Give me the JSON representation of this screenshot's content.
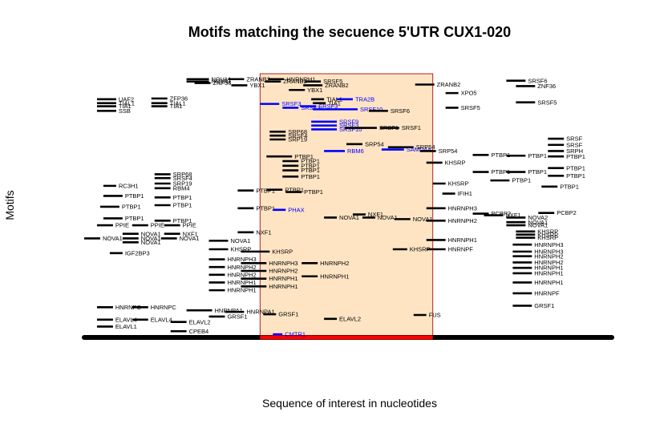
{
  "chart_data": {
    "type": "scatter",
    "title": "Motifs matching the secuence 5'UTR CUX1-020",
    "xlabel": "Sequence of interest in nucleotides",
    "ylabel": "Motifs",
    "colors": {
      "motif": "#000000",
      "highlight": "#0000ff",
      "region_fill": "#ffe4c4",
      "region_border": "#b22222",
      "region_base": "#ff0000",
      "sequence_bar": "#000000"
    },
    "sequence": {
      "start": 0,
      "end": 330
    },
    "region": {
      "start": 110,
      "end": 218
    },
    "xlim": [
      0,
      330
    ],
    "ylim": [
      0,
      34
    ],
    "motifs": [
      {
        "x1": 64,
        "x2": 78,
        "y": 33.3,
        "label": "NOVA1"
      },
      {
        "x1": 64,
        "x2": 78,
        "y": 33.0,
        "label": "NOVA1"
      },
      {
        "x1": 69,
        "x2": 79,
        "y": 32.8,
        "label": "ZNF36"
      },
      {
        "x1": 8,
        "x2": 20,
        "y": 30.7,
        "label": "UAF2"
      },
      {
        "x1": 42,
        "x2": 52,
        "y": 30.8,
        "label": "ZFP36"
      },
      {
        "x1": 8,
        "x2": 20,
        "y": 30.2,
        "label": "TIAL1"
      },
      {
        "x1": 42,
        "x2": 52,
        "y": 30.2,
        "label": "TIAL1"
      },
      {
        "x1": 8,
        "x2": 20,
        "y": 29.8,
        "label": "TIA1"
      },
      {
        "x1": 42,
        "x2": 52,
        "y": 29.8,
        "label": "TIA1"
      },
      {
        "x1": 8,
        "x2": 20,
        "y": 29.2,
        "label": "SSB"
      },
      {
        "x1": 44,
        "x2": 54,
        "y": 21.0,
        "label": "SRP68"
      },
      {
        "x1": 44,
        "x2": 54,
        "y": 20.5,
        "label": "SRSF4"
      },
      {
        "x1": 44,
        "x2": 54,
        "y": 19.8,
        "label": "SRP19"
      },
      {
        "x1": 12,
        "x2": 20,
        "y": 19.5,
        "label": "RC3H1"
      },
      {
        "x1": 44,
        "x2": 54,
        "y": 19.2,
        "label": "RBM4"
      },
      {
        "x1": 12,
        "x2": 24,
        "y": 18.2,
        "label": "PTBP1"
      },
      {
        "x1": 44,
        "x2": 54,
        "y": 18.0,
        "label": "PTBP1"
      },
      {
        "x1": 10,
        "x2": 22,
        "y": 16.8,
        "label": "PTBP1"
      },
      {
        "x1": 44,
        "x2": 54,
        "y": 17.0,
        "label": "PTBP1"
      },
      {
        "x1": 12,
        "x2": 24,
        "y": 15.3,
        "label": "PTBP1"
      },
      {
        "x1": 44,
        "x2": 54,
        "y": 15.0,
        "label": "PTBP1"
      },
      {
        "x1": 8,
        "x2": 18,
        "y": 14.4,
        "label": "PPIE"
      },
      {
        "x1": 30,
        "x2": 40,
        "y": 14.4,
        "label": "PPIE"
      },
      {
        "x1": 50,
        "x2": 60,
        "y": 14.4,
        "label": "PPIE"
      },
      {
        "x1": 24,
        "x2": 34,
        "y": 13.3,
        "label": "NOVA1"
      },
      {
        "x1": 50,
        "x2": 60,
        "y": 13.3,
        "label": "NXF1"
      },
      {
        "x1": 0,
        "x2": 10,
        "y": 12.7,
        "label": "NOVA1"
      },
      {
        "x1": 24,
        "x2": 34,
        "y": 12.7,
        "label": "NOVA1"
      },
      {
        "x1": 48,
        "x2": 58,
        "y": 12.7,
        "label": "NOVA1"
      },
      {
        "x1": 24,
        "x2": 34,
        "y": 12.2,
        "label": "NOVA1"
      },
      {
        "x1": 16,
        "x2": 24,
        "y": 10.8,
        "label": "IGF2BP3"
      },
      {
        "x1": 8,
        "x2": 18,
        "y": 3.8,
        "label": "HNRNPC"
      },
      {
        "x1": 30,
        "x2": 40,
        "y": 3.8,
        "label": "HNRNPC"
      },
      {
        "x1": 64,
        "x2": 80,
        "y": 3.4,
        "label": "HNRNPA1"
      },
      {
        "x1": 8,
        "x2": 18,
        "y": 2.2,
        "label": "ELAVL4"
      },
      {
        "x1": 30,
        "x2": 40,
        "y": 2.2,
        "label": "ELAVL4"
      },
      {
        "x1": 54,
        "x2": 64,
        "y": 1.9,
        "label": "ELAVL2"
      },
      {
        "x1": 8,
        "x2": 18,
        "y": 1.3,
        "label": "ELAVL1"
      },
      {
        "x1": 54,
        "x2": 64,
        "y": 0.7,
        "label": "CPEB4"
      },
      {
        "x1": 90,
        "x2": 100,
        "y": 33.3,
        "label": "ZRANB2"
      },
      {
        "x1": 92,
        "x2": 102,
        "y": 32.5,
        "label": "YBX1"
      },
      {
        "x1": 110,
        "x2": 122,
        "y": 30.1,
        "label": "SRSF3"
      },
      {
        "x1": 96,
        "x2": 106,
        "y": 18.9,
        "label": "PTBP1"
      },
      {
        "x1": 96,
        "x2": 106,
        "y": 16.6,
        "label": "PTBP1"
      },
      {
        "x1": 96,
        "x2": 106,
        "y": 13.5,
        "label": "NXF1"
      },
      {
        "x1": 78,
        "x2": 90,
        "y": 12.4,
        "label": "NOVA1"
      },
      {
        "x1": 78,
        "x2": 90,
        "y": 11.3,
        "label": "KHSRP"
      },
      {
        "x1": 98,
        "x2": 116,
        "y": 11.0,
        "label": "KHSRP"
      },
      {
        "x1": 78,
        "x2": 88,
        "y": 10.0,
        "label": "HNRNPH3"
      },
      {
        "x1": 78,
        "x2": 88,
        "y": 9.0,
        "label": "HNRNPH2"
      },
      {
        "x1": 78,
        "x2": 88,
        "y": 8.0,
        "label": "HNRNPH2"
      },
      {
        "x1": 78,
        "x2": 88,
        "y": 7.0,
        "label": "HNRNPH1"
      },
      {
        "x1": 78,
        "x2": 88,
        "y": 6.0,
        "label": "HNRNPH1"
      },
      {
        "x1": 98,
        "x2": 114,
        "y": 9.5,
        "label": "HNRNPH3"
      },
      {
        "x1": 98,
        "x2": 114,
        "y": 8.5,
        "label": "HNRNPH2"
      },
      {
        "x1": 98,
        "x2": 114,
        "y": 7.5,
        "label": "HNRNPH1"
      },
      {
        "x1": 98,
        "x2": 114,
        "y": 6.5,
        "label": "HNRNPH1"
      },
      {
        "x1": 88,
        "x2": 100,
        "y": 3.2,
        "label": "HNRNPA1"
      },
      {
        "x1": 78,
        "x2": 88,
        "y": 2.6,
        "label": "GRSF1"
      },
      {
        "x1": 112,
        "x2": 120,
        "y": 2.9,
        "label": "GRSF1"
      },
      {
        "x1": 115,
        "x2": 125,
        "y": 33.3,
        "label": "HNRNPH1"
      },
      {
        "x1": 138,
        "x2": 148,
        "y": 33.0,
        "label": "SRSF5"
      },
      {
        "x1": 113,
        "x2": 123,
        "y": 33.0,
        "label": "ZRANB2"
      },
      {
        "x1": 137,
        "x2": 149,
        "y": 32.5,
        "label": "ZRANB2"
      },
      {
        "x1": 128,
        "x2": 138,
        "y": 31.9,
        "label": "YBX1"
      },
      {
        "x1": 142,
        "x2": 150,
        "y": 30.7,
        "label": "TIAL1"
      },
      {
        "x1": 158,
        "x2": 168,
        "y": 30.7,
        "label": "TRA2B"
      },
      {
        "x1": 143,
        "x2": 151,
        "y": 30.2,
        "label": "TIA1"
      },
      {
        "x1": 135,
        "x2": 145,
        "y": 29.8,
        "label": "SRSF3"
      },
      {
        "x1": 124,
        "x2": 134,
        "y": 29.6,
        "label": "SRSF3"
      },
      {
        "x1": 143,
        "x2": 171,
        "y": 29.4,
        "label": "SRSF10"
      },
      {
        "x1": 178,
        "x2": 190,
        "y": 29.2,
        "label": "SRSF6"
      },
      {
        "x1": 142,
        "x2": 158,
        "y": 27.8,
        "label": "SRSF9"
      },
      {
        "x1": 142,
        "x2": 158,
        "y": 27.3,
        "label": "SRSF3"
      },
      {
        "x1": 142,
        "x2": 158,
        "y": 26.8,
        "label": "SRSF10"
      },
      {
        "x1": 163,
        "x2": 183,
        "y": 27.0,
        "label": "SRSF1"
      },
      {
        "x1": 185,
        "x2": 197,
        "y": 27.0,
        "label": "SRSF1"
      },
      {
        "x1": 116,
        "x2": 126,
        "y": 26.5,
        "label": "SRP68"
      },
      {
        "x1": 116,
        "x2": 126,
        "y": 26.0,
        "label": "SRSF4"
      },
      {
        "x1": 116,
        "x2": 126,
        "y": 25.5,
        "label": "SRP19"
      },
      {
        "x1": 164,
        "x2": 174,
        "y": 24.9,
        "label": "SRP54"
      },
      {
        "x1": 190,
        "x2": 206,
        "y": 24.5,
        "label": "SRP54"
      },
      {
        "x1": 150,
        "x2": 163,
        "y": 24.0,
        "label": "RBM6"
      },
      {
        "x1": 186,
        "x2": 200,
        "y": 24.2,
        "label": "SAMD4A"
      },
      {
        "x1": 114,
        "x2": 130,
        "y": 23.3,
        "label": "PTBP1"
      },
      {
        "x1": 124,
        "x2": 134,
        "y": 22.7,
        "label": "PTBP1"
      },
      {
        "x1": 124,
        "x2": 134,
        "y": 22.1,
        "label": "PTBP1"
      },
      {
        "x1": 124,
        "x2": 134,
        "y": 21.5,
        "label": "PTBP1"
      },
      {
        "x1": 124,
        "x2": 134,
        "y": 20.7,
        "label": "PTBP1"
      },
      {
        "x1": 114,
        "x2": 124,
        "y": 19.0,
        "label": "PTBP1"
      },
      {
        "x1": 126,
        "x2": 136,
        "y": 18.7,
        "label": "PTBP1"
      },
      {
        "x1": 118,
        "x2": 126,
        "y": 16.4,
        "label": "PHAX"
      },
      {
        "x1": 150,
        "x2": 158,
        "y": 15.4,
        "label": "NOVA1"
      },
      {
        "x1": 168,
        "x2": 176,
        "y": 15.8,
        "label": "NXF1"
      },
      {
        "x1": 174,
        "x2": 182,
        "y": 15.4,
        "label": "NOVA1"
      },
      {
        "x1": 194,
        "x2": 204,
        "y": 15.2,
        "label": "NOVA1"
      },
      {
        "x1": 193,
        "x2": 202,
        "y": 11.3,
        "label": "KHSRP"
      },
      {
        "x1": 136,
        "x2": 146,
        "y": 9.5,
        "label": "HNRNPH2"
      },
      {
        "x1": 136,
        "x2": 146,
        "y": 7.8,
        "label": "HNRNPH1"
      },
      {
        "x1": 150,
        "x2": 158,
        "y": 2.3,
        "label": "ELAVL2"
      },
      {
        "x1": 118,
        "x2": 124,
        "y": 0.3,
        "label": "CMTR1"
      },
      {
        "x1": 207,
        "x2": 219,
        "y": 32.6,
        "label": "ZRANB2"
      },
      {
        "x1": 226,
        "x2": 234,
        "y": 31.5,
        "label": "XPO5"
      },
      {
        "x1": 226,
        "x2": 234,
        "y": 29.6,
        "label": "SRSF5"
      },
      {
        "x1": 210,
        "x2": 220,
        "y": 24.0,
        "label": "SRP54"
      },
      {
        "x1": 214,
        "x2": 224,
        "y": 22.5,
        "label": "KHSRP"
      },
      {
        "x1": 218,
        "x2": 226,
        "y": 19.8,
        "label": "KHSRP"
      },
      {
        "x1": 224,
        "x2": 232,
        "y": 18.5,
        "label": "IFIH1"
      },
      {
        "x1": 214,
        "x2": 226,
        "y": 16.6,
        "label": "HNRNPH3"
      },
      {
        "x1": 214,
        "x2": 226,
        "y": 15.0,
        "label": "HNRNPH2"
      },
      {
        "x1": 214,
        "x2": 226,
        "y": 12.5,
        "label": "HNRNPH1"
      },
      {
        "x1": 214,
        "x2": 226,
        "y": 11.3,
        "label": "HNRNPF"
      },
      {
        "x1": 206,
        "x2": 214,
        "y": 2.8,
        "label": "FUS"
      },
      {
        "x1": 243,
        "x2": 253,
        "y": 23.5,
        "label": "PTBP1"
      },
      {
        "x1": 264,
        "x2": 276,
        "y": 23.4,
        "label": "PTBP1"
      },
      {
        "x1": 243,
        "x2": 253,
        "y": 21.3,
        "label": "PTBP1"
      },
      {
        "x1": 264,
        "x2": 276,
        "y": 21.3,
        "label": "PTBP1"
      },
      {
        "x1": 254,
        "x2": 266,
        "y": 20.2,
        "label": "PTBP1"
      },
      {
        "x1": 243,
        "x2": 253,
        "y": 15.9,
        "label": "PCBP2"
      },
      {
        "x1": 250,
        "x2": 262,
        "y": 15.7,
        "label": "NXF1"
      },
      {
        "x1": 264,
        "x2": 276,
        "y": 15.4,
        "label": "NOVA2"
      },
      {
        "x1": 264,
        "x2": 276,
        "y": 14.8,
        "label": "NOVA1"
      },
      {
        "x1": 264,
        "x2": 276,
        "y": 14.4,
        "label": "NOVA1"
      },
      {
        "x1": 270,
        "x2": 282,
        "y": 13.6,
        "label": "KHSRP"
      },
      {
        "x1": 270,
        "x2": 282,
        "y": 13.2,
        "label": "KHSRP"
      },
      {
        "x1": 270,
        "x2": 282,
        "y": 12.8,
        "label": "KHSRP"
      },
      {
        "x1": 268,
        "x2": 280,
        "y": 11.9,
        "label": "HNRNPH3"
      },
      {
        "x1": 268,
        "x2": 280,
        "y": 11.0,
        "label": "HNRNPH3"
      },
      {
        "x1": 268,
        "x2": 280,
        "y": 10.4,
        "label": "HNRNPH2"
      },
      {
        "x1": 268,
        "x2": 280,
        "y": 9.6,
        "label": "HNRNPH2"
      },
      {
        "x1": 268,
        "x2": 280,
        "y": 8.9,
        "label": "HNRNPH1"
      },
      {
        "x1": 268,
        "x2": 280,
        "y": 8.2,
        "label": "HNRNPH1"
      },
      {
        "x1": 268,
        "x2": 280,
        "y": 7.0,
        "label": "HNRNPH1"
      },
      {
        "x1": 268,
        "x2": 280,
        "y": 5.6,
        "label": "HNRNPF"
      },
      {
        "x1": 268,
        "x2": 280,
        "y": 4.0,
        "label": "GRSF1"
      },
      {
        "x1": 264,
        "x2": 276,
        "y": 33.1,
        "label": "SRSF6"
      },
      {
        "x1": 270,
        "x2": 282,
        "y": 32.4,
        "label": "ZNF36"
      },
      {
        "x1": 270,
        "x2": 282,
        "y": 30.3,
        "label": "SRSF5"
      },
      {
        "x1": 290,
        "x2": 300,
        "y": 25.6,
        "label": "SRSF"
      },
      {
        "x1": 290,
        "x2": 300,
        "y": 24.8,
        "label": "SRSF"
      },
      {
        "x1": 290,
        "x2": 300,
        "y": 24.0,
        "label": "SRPH"
      },
      {
        "x1": 290,
        "x2": 300,
        "y": 23.3,
        "label": "PTBP1"
      },
      {
        "x1": 290,
        "x2": 300,
        "y": 21.8,
        "label": "PTBP1"
      },
      {
        "x1": 290,
        "x2": 300,
        "y": 20.8,
        "label": "PTBP1"
      },
      {
        "x1": 286,
        "x2": 296,
        "y": 19.4,
        "label": "PTBP1"
      },
      {
        "x1": 284,
        "x2": 294,
        "y": 16.0,
        "label": "PCBP2"
      }
    ]
  }
}
